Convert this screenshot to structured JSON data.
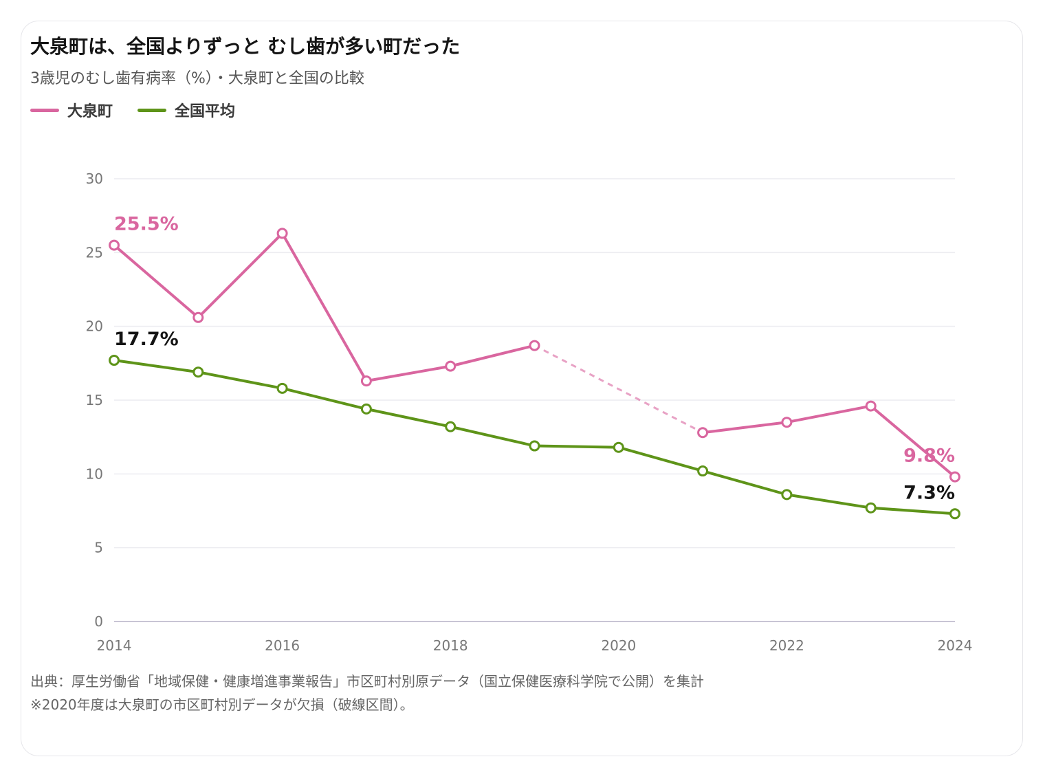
{
  "header": {
    "title": "大泉町は、全国よりずっと むし歯が多い町だった",
    "subtitle": "3歳児のむし歯有病率（%）・大泉町と全国の比較"
  },
  "legend": [
    {
      "label": "大泉町",
      "color": "#d9669f"
    },
    {
      "label": "全国平均",
      "color": "#5e9419"
    }
  ],
  "footer": {
    "source": "出典：厚生労働省「地域保健・健康増進事業報告」市区町村別原データ（国立保健医療科学院で公開）を集計",
    "note": "※2020年度は大泉町の市区町村別データが欠損（破線区間）。"
  },
  "chart_data": {
    "type": "line",
    "title": "大泉町は、全国よりずっと むし歯が多い町だった",
    "subtitle": "3歳児のむし歯有病率（%）・大泉町と全国の比較",
    "x": [
      2014,
      2015,
      2016,
      2017,
      2018,
      2019,
      2020,
      2021,
      2022,
      2023,
      2024
    ],
    "xticks": [
      "2014",
      "2016",
      "2018",
      "2020",
      "2022",
      "2024"
    ],
    "yticks": [
      "0",
      "5",
      "10",
      "15",
      "20",
      "25",
      "30"
    ],
    "ylim": [
      0,
      30
    ],
    "grid": true,
    "legend_position": "top-left",
    "series": [
      {
        "name": "大泉町",
        "color": "#d9669f",
        "values": [
          25.5,
          20.6,
          26.3,
          16.3,
          17.3,
          18.7,
          null,
          12.8,
          13.5,
          14.6,
          9.8
        ],
        "gap_style": "dashed",
        "labels": {
          "start": "25.5%",
          "end": "9.8%"
        }
      },
      {
        "name": "全国平均",
        "color": "#5e9419",
        "values": [
          17.7,
          16.9,
          15.8,
          14.4,
          13.2,
          11.9,
          11.8,
          10.2,
          8.6,
          7.7,
          7.3
        ],
        "labels": {
          "start": "17.7%",
          "end": "7.3%"
        }
      }
    ]
  }
}
